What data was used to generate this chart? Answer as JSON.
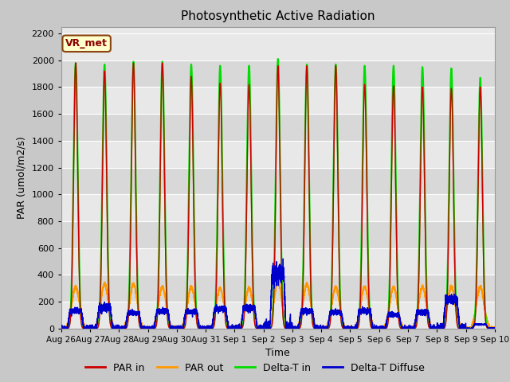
{
  "title": "Photosynthetic Active Radiation",
  "ylabel": "PAR (umol/m2/s)",
  "xlabel": "Time",
  "ylim": [
    0,
    2250
  ],
  "fig_bg_color": "#c8c8c8",
  "plot_bg_color": "#e8e8e8",
  "alt_band_color": "#d8d8d8",
  "label_box_text": "VR_met",
  "label_box_facecolor": "#ffffcc",
  "label_box_edgecolor": "#8B4513",
  "label_box_textcolor": "#8B0000",
  "series": {
    "PAR_in": {
      "label": "PAR in",
      "color": "#cc0000",
      "linewidth": 1.0
    },
    "PAR_out": {
      "label": "PAR out",
      "color": "#ff9900",
      "linewidth": 1.2
    },
    "Delta_T_in": {
      "label": "Delta-T in",
      "color": "#00dd00",
      "linewidth": 1.5
    },
    "Delta_T_Diffuse": {
      "label": "Delta-T Diffuse",
      "color": "#0000cc",
      "linewidth": 1.0
    }
  },
  "x_tick_labels": [
    "Aug 26",
    "Aug 27",
    "Aug 28",
    "Aug 29",
    "Aug 30",
    "Aug 31",
    "Sep 1",
    "Sep 2",
    "Sep 3",
    "Sep 4",
    "Sep 5",
    "Sep 6",
    "Sep 7",
    "Sep 8",
    "Sep 9",
    "Sep 10"
  ],
  "num_days": 15,
  "day_peaks_PAR_in": [
    1980,
    1920,
    1980,
    1980,
    1880,
    1830,
    1820,
    1960,
    1960,
    1960,
    1820,
    1810,
    1800,
    1790,
    1800
  ],
  "day_peaks_PAR_out": [
    310,
    330,
    330,
    310,
    310,
    300,
    300,
    355,
    330,
    310,
    310,
    310,
    310,
    310,
    310
  ],
  "day_peaks_Delta_T_in": [
    1980,
    1970,
    1990,
    1990,
    1970,
    1960,
    1960,
    2010,
    1970,
    1970,
    1960,
    1960,
    1950,
    1940,
    1870
  ],
  "day_peaks_Delta_T_Diffuse": [
    130,
    155,
    115,
    130,
    125,
    145,
    155,
    410,
    130,
    120,
    130,
    100,
    120,
    215,
    30
  ],
  "yticks": [
    0,
    200,
    400,
    600,
    800,
    1000,
    1200,
    1400,
    1600,
    1800,
    2000,
    2200
  ]
}
